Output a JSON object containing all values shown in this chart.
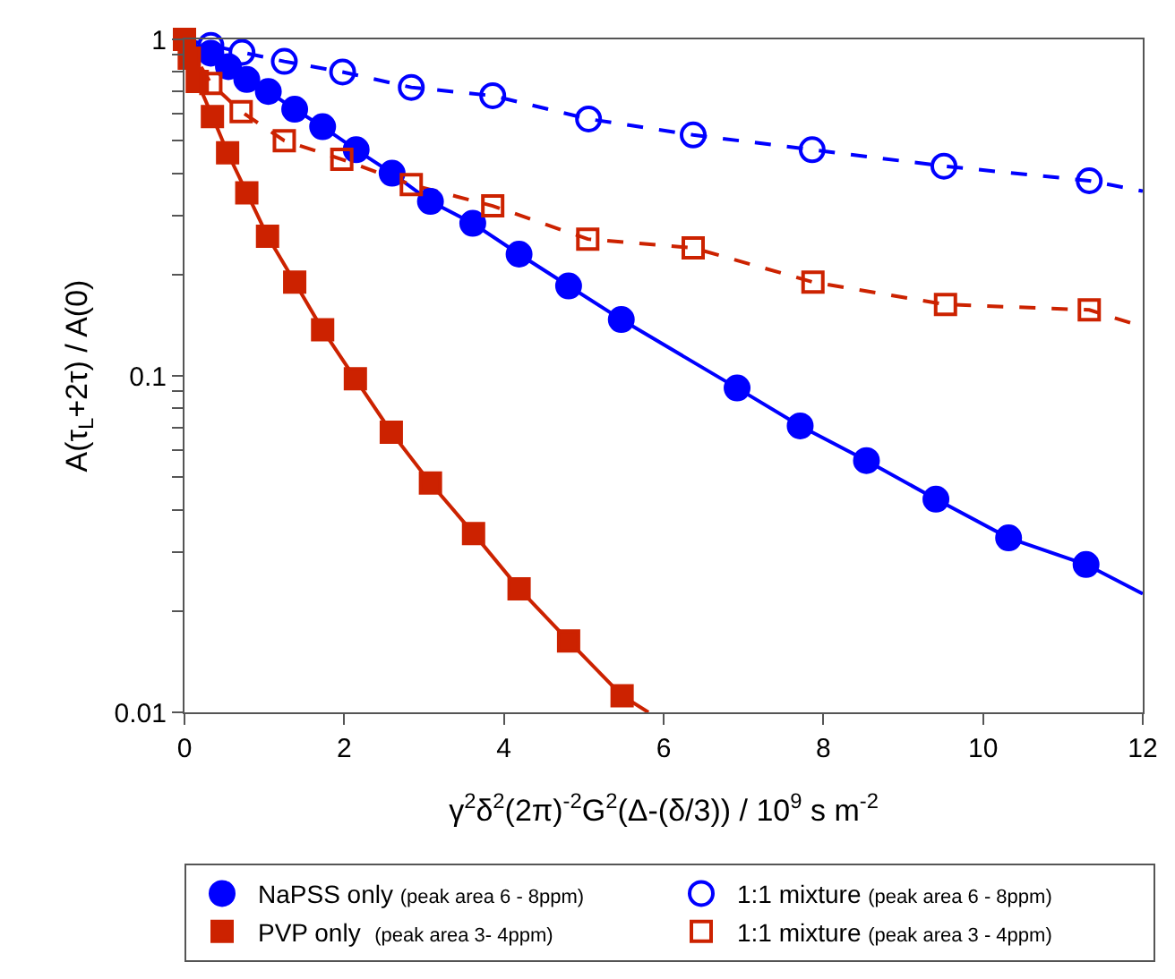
{
  "chart_data": {
    "type": "scatter",
    "xlabel": "γ$^{2}$δ$^{2}$(2π)$^{-2}$G$^{2}$(Δ-(δ/3)) / 10$^{9}$ s m$^{-2}$",
    "ylabel": "A(τ$_{L}$+2τ) / A(0)",
    "log": "y",
    "xlim": [
      0,
      12
    ],
    "xticks": [
      0,
      2,
      4,
      6,
      8,
      10,
      12
    ],
    "ylim": [
      0.01,
      1
    ],
    "yticks": [
      0.01,
      {
        "value": 0.02,
        "label": null
      },
      {
        "value": 0.03,
        "label": null
      },
      {
        "value": 0.04,
        "label": null
      },
      {
        "value": 0.05,
        "label": null
      },
      {
        "value": 0.06,
        "label": null
      },
      {
        "value": 0.07,
        "label": null
      },
      {
        "value": 0.08,
        "label": null
      },
      {
        "value": 0.09,
        "label": null
      },
      0.1,
      {
        "value": 0.2,
        "label": null
      },
      {
        "value": 0.3,
        "label": null
      },
      {
        "value": 0.4,
        "label": null
      },
      {
        "value": 0.5,
        "label": null
      },
      {
        "value": 0.6,
        "label": null
      },
      {
        "value": 0.7,
        "label": null
      },
      {
        "value": 0.8,
        "label": null
      },
      {
        "value": 0.9,
        "label": null
      },
      1
    ],
    "legend": "bottom",
    "series": [
      {
        "type": "line",
        "color": "#0000ff",
        "line_style": "solid",
        "marker": "none",
        "x": [
          0,
          0.33,
          0.55,
          0.78,
          1.05,
          1.38,
          1.73,
          2.15,
          2.6,
          3.08,
          3.61,
          4.19,
          4.81,
          5.47,
          6.92,
          7.71,
          8.54,
          9.41,
          10.32,
          11.29,
          12
        ],
        "values": [
          1,
          0.91,
          0.83,
          0.76,
          0.7,
          0.62,
          0.55,
          0.47,
          0.4,
          0.33,
          0.284,
          0.23,
          0.185,
          0.147,
          0.092,
          0.071,
          0.056,
          0.043,
          0.033,
          0.0275,
          0.0225
        ]
      },
      {
        "type": "line",
        "color": "#cc2200",
        "line_style": "solid",
        "marker": "none",
        "x": [
          0,
          0.06,
          0.16,
          0.35,
          0.54,
          0.78,
          1.04,
          1.38,
          1.73,
          2.14,
          2.59,
          3.08,
          3.62,
          4.19,
          4.81,
          5.48,
          5.81
        ],
        "values": [
          1,
          0.88,
          0.75,
          0.59,
          0.46,
          0.35,
          0.26,
          0.19,
          0.137,
          0.098,
          0.068,
          0.048,
          0.034,
          0.0233,
          0.0163,
          0.0112,
          0.01
        ]
      },
      {
        "type": "line",
        "color": "#0000ff",
        "line_style": "dashed",
        "marker": "none",
        "x": [
          0,
          0.33,
          0.72,
          1.25,
          1.98,
          2.84,
          3.86,
          5.06,
          6.37,
          7.86,
          9.51,
          11.33,
          12
        ],
        "values": [
          1,
          0.96,
          0.915,
          0.86,
          0.8,
          0.72,
          0.68,
          0.58,
          0.52,
          0.47,
          0.42,
          0.38,
          0.354
        ]
      },
      {
        "type": "line",
        "color": "#cc2200",
        "line_style": "dashed",
        "marker": "none",
        "x": [
          0,
          0.33,
          0.71,
          1.25,
          1.97,
          2.84,
          3.86,
          5.05,
          6.37,
          7.87,
          9.53,
          11.33,
          12
        ],
        "values": [
          1,
          0.74,
          0.61,
          0.5,
          0.44,
          0.37,
          0.32,
          0.255,
          0.24,
          0.19,
          0.163,
          0.157,
          0.14
        ]
      },
      {
        "name": "NaPSS only (peak area 6 - 8ppm)",
        "color": "#0000ff",
        "marker": "circle",
        "x": [
          0.33,
          0.55,
          0.78,
          1.05,
          1.38,
          1.73,
          2.15,
          2.6,
          3.08,
          3.61,
          4.19,
          4.81,
          5.47,
          6.92,
          7.71,
          8.54,
          9.41,
          10.32,
          11.29
        ],
        "values": [
          0.91,
          0.83,
          0.76,
          0.7,
          0.62,
          0.55,
          0.47,
          0.4,
          0.33,
          0.284,
          0.23,
          0.185,
          0.147,
          0.092,
          0.071,
          0.056,
          0.043,
          0.033,
          0.0275
        ]
      },
      {
        "name": "1:1 mixture (peak area 6 - 8ppm)",
        "color": "#0000ff",
        "marker": "circle-open",
        "x": [
          0.33,
          0.72,
          1.25,
          1.98,
          2.84,
          3.86,
          5.06,
          6.37,
          7.86,
          9.51,
          11.33
        ],
        "values": [
          0.96,
          0.915,
          0.86,
          0.8,
          0.72,
          0.68,
          0.58,
          0.52,
          0.47,
          0.42,
          0.38
        ]
      },
      {
        "name": "PVP only  (peak area 3- 4ppm)",
        "color": "#cc2200",
        "marker": "square",
        "x": [
          0,
          0.06,
          0.16,
          0.35,
          0.54,
          0.78,
          1.04,
          1.38,
          1.73,
          2.14,
          2.59,
          3.08,
          3.62,
          4.19,
          4.81,
          5.48
        ],
        "values": [
          1,
          0.88,
          0.75,
          0.59,
          0.46,
          0.35,
          0.26,
          0.19,
          0.137,
          0.098,
          0.068,
          0.048,
          0.034,
          0.0233,
          0.0163,
          0.0112
        ]
      },
      {
        "name": "1:1 mixture (peak area 3 - 4ppm)",
        "color": "#cc2200",
        "marker": "square-open",
        "x": [
          0.33,
          0.71,
          1.25,
          1.97,
          2.84,
          3.86,
          5.05,
          6.37,
          7.87,
          9.53,
          11.33
        ],
        "values": [
          0.74,
          0.61,
          0.5,
          0.44,
          0.37,
          0.32,
          0.255,
          0.24,
          0.19,
          0.163,
          0.157
        ]
      }
    ]
  }
}
